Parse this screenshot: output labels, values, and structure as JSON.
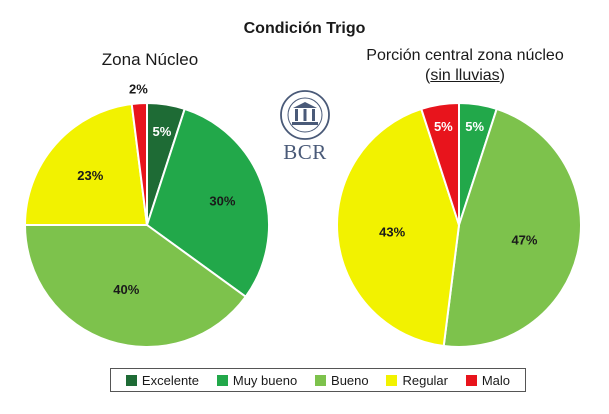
{
  "title": "Condición Trigo",
  "logo_text": "BCR",
  "chart_data": [
    {
      "type": "pie",
      "title": "Zona Núcleo",
      "categories": [
        "Excelente",
        "Muy bueno",
        "Bueno",
        "Regular",
        "Malo"
      ],
      "values": [
        5,
        30,
        40,
        23,
        2
      ],
      "labels": [
        "5%",
        "30%",
        "40%",
        "23%",
        "2%"
      ],
      "colors": [
        "#1e6b35",
        "#22a84a",
        "#7dc24c",
        "#f2f200",
        "#e8141c"
      ]
    },
    {
      "type": "pie",
      "title": "Porción central zona núcleo",
      "subtitle": "sin lluvias",
      "categories": [
        "Excelente",
        "Muy bueno",
        "Bueno",
        "Regular",
        "Malo"
      ],
      "values": [
        0,
        5,
        47,
        43,
        5
      ],
      "labels": [
        "",
        "5%",
        "47%",
        "43%",
        "5%"
      ],
      "colors": [
        "#1e6b35",
        "#22a84a",
        "#7dc24c",
        "#f2f200",
        "#e8141c"
      ]
    }
  ],
  "legend": [
    {
      "label": "Excelente",
      "color": "#1e6b35"
    },
    {
      "label": "Muy bueno",
      "color": "#22a84a"
    },
    {
      "label": "Bueno",
      "color": "#7dc24c"
    },
    {
      "label": "Regular",
      "color": "#f2f200"
    },
    {
      "label": "Malo",
      "color": "#e8141c"
    }
  ]
}
